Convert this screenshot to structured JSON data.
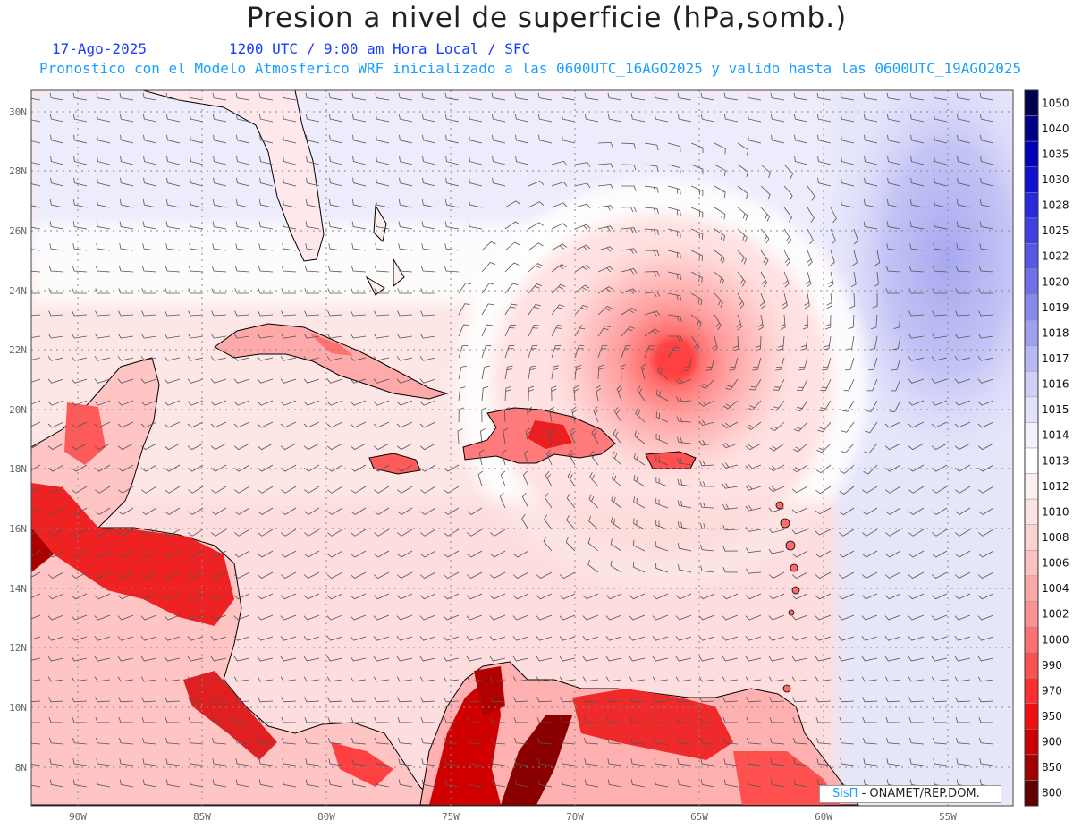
{
  "header": {
    "title": "Presion a nivel de superficie (hPa,somb.)",
    "date": "17-Ago-2025",
    "time_line": "1200 UTC / 9:00 am Hora Local / SFC",
    "info_line": "Pronostico con el Modelo Atmosferico WRF inicializado a las 0600UTC_16AGO2025 y valido hasta las  0600UTC_19AGO2025"
  },
  "axes": {
    "lon_labels": [
      "90W",
      "85W",
      "80W",
      "75W",
      "70W",
      "65W",
      "60W",
      "55W"
    ],
    "lat_labels": [
      "30N",
      "28N",
      "26N",
      "24N",
      "22N",
      "20N",
      "18N",
      "16N",
      "14N",
      "12N",
      "10N",
      "8N"
    ]
  },
  "colorbar": {
    "labels": [
      "1050",
      "1040",
      "1035",
      "1030",
      "1028",
      "1025",
      "1022",
      "1020",
      "1019",
      "1018",
      "1017",
      "1016",
      "1015",
      "1014",
      "1013",
      "1012",
      "1010",
      "1008",
      "1006",
      "1004",
      "1002",
      "1000",
      "990",
      "970",
      "950",
      "900",
      "850",
      "800"
    ],
    "colors": [
      "#000050",
      "#000088",
      "#0000b8",
      "#1010d0",
      "#2828dc",
      "#4040e0",
      "#5858e4",
      "#7070e8",
      "#8888ec",
      "#a0a0f0",
      "#b8b8f4",
      "#cfcff8",
      "#e2e2fc",
      "#f2f2fe",
      "#ffffff",
      "#fff0f0",
      "#ffe2e2",
      "#ffd2d2",
      "#ffc0c0",
      "#ffa8a8",
      "#ff9090",
      "#ff7070",
      "#ff5050",
      "#ff2e2e",
      "#ee1010",
      "#cc0000",
      "#a00000",
      "#600000"
    ]
  },
  "credit": {
    "brand": "SisΠ",
    "org": "- ONAMET/REP.DOM."
  },
  "features": {
    "storm_center": "hurricane low near 21.5N 65.5W"
  }
}
